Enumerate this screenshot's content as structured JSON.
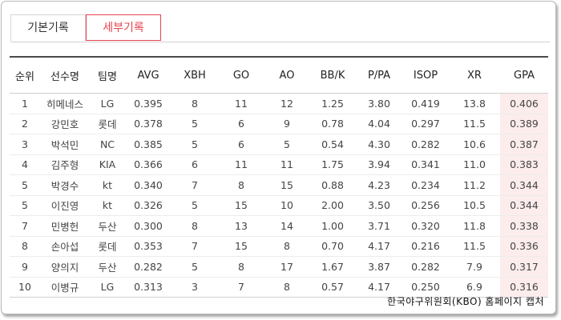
{
  "tabs": [
    {
      "label": "기본기록",
      "active": false
    },
    {
      "label": "세부기록",
      "active": true
    }
  ],
  "columns": [
    "순위",
    "선수명",
    "팀명",
    "AVG",
    "XBH",
    "GO",
    "AO",
    "BB/K",
    "P/PA",
    "ISOP",
    "XR",
    "GPA"
  ],
  "rows": [
    [
      "1",
      "히메네스",
      "LG",
      "0.395",
      "8",
      "11",
      "12",
      "1.25",
      "3.80",
      "0.419",
      "13.8",
      "0.406"
    ],
    [
      "2",
      "강민호",
      "롯데",
      "0.378",
      "5",
      "6",
      "9",
      "0.78",
      "4.04",
      "0.297",
      "11.5",
      "0.389"
    ],
    [
      "3",
      "박석민",
      "NC",
      "0.385",
      "5",
      "6",
      "5",
      "0.54",
      "4.30",
      "0.282",
      "10.6",
      "0.387"
    ],
    [
      "4",
      "김주형",
      "KIA",
      "0.366",
      "6",
      "11",
      "11",
      "1.75",
      "3.94",
      "0.341",
      "11.0",
      "0.383"
    ],
    [
      "5",
      "박경수",
      "kt",
      "0.340",
      "7",
      "8",
      "15",
      "0.88",
      "4.23",
      "0.234",
      "11.2",
      "0.344"
    ],
    [
      "5",
      "이진영",
      "kt",
      "0.326",
      "5",
      "15",
      "10",
      "2.00",
      "3.50",
      "0.256",
      "10.5",
      "0.344"
    ],
    [
      "7",
      "민병헌",
      "두산",
      "0.300",
      "8",
      "13",
      "14",
      "1.00",
      "3.71",
      "0.320",
      "11.8",
      "0.338"
    ],
    [
      "8",
      "손아섭",
      "롯데",
      "0.353",
      "7",
      "15",
      "8",
      "0.70",
      "4.17",
      "0.216",
      "11.5",
      "0.336"
    ],
    [
      "9",
      "양의지",
      "두산",
      "0.282",
      "5",
      "8",
      "17",
      "1.67",
      "3.87",
      "0.282",
      "7.9",
      "0.317"
    ],
    [
      "10",
      "이병규",
      "LG",
      "0.313",
      "3",
      "7",
      "8",
      "0.57",
      "4.17",
      "0.250",
      "6.9",
      "0.316"
    ]
  ],
  "caption": "한국야구위원회(KBO) 홈페이지 캡처",
  "colors": {
    "accent": "#e8424f",
    "gpa_highlight": "#fdecec"
  }
}
